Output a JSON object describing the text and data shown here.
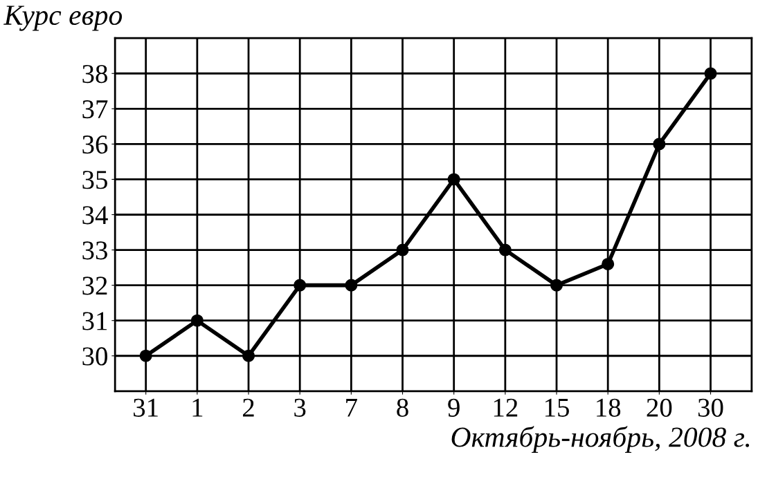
{
  "chart_data": {
    "type": "line",
    "title": "Курс евро",
    "xlabel": "Октябрь-ноябрь, 2008 г.",
    "categories": [
      "31",
      "1",
      "2",
      "3",
      "7",
      "8",
      "9",
      "12",
      "15",
      "18",
      "20",
      "30"
    ],
    "series": [
      {
        "color": "#000000",
        "values": [
          30,
          31,
          30,
          32,
          32,
          33,
          35,
          33,
          32,
          32.6,
          36,
          38
        ]
      }
    ],
    "ylim": [
      29,
      39
    ],
    "yticks": [
      30,
      31,
      32,
      33,
      34,
      35,
      36,
      37,
      38
    ],
    "grid": true,
    "marker": "circle",
    "line_style": "solid",
    "legend": false
  }
}
